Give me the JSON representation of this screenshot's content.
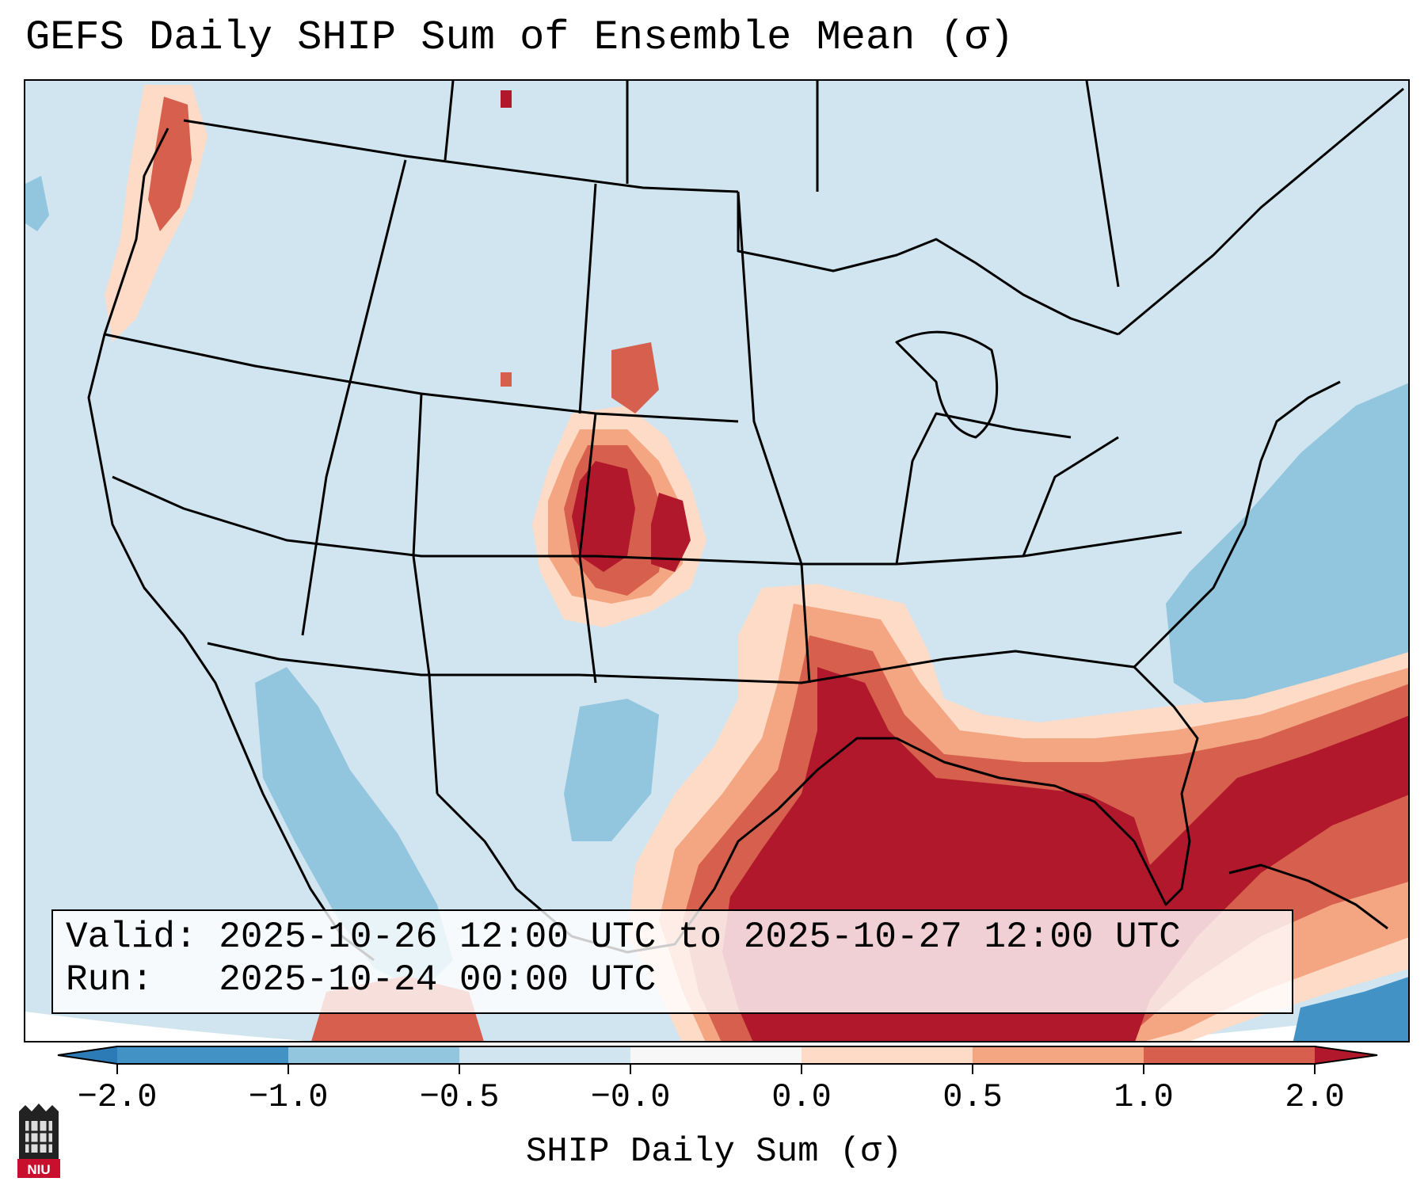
{
  "title": "GEFS Daily SHIP Sum of Ensemble Mean (σ)",
  "info": {
    "valid_label": "Valid:",
    "valid_value": "2025-10-26 12:00 UTC to 2025-10-27 12:00 UTC",
    "run_label": "Run:",
    "run_value": "2025-10-24 00:00 UTC"
  },
  "colorbar": {
    "label": "SHIP Daily Sum (σ)",
    "ticks": [
      "−2.0",
      "−1.0",
      "−0.5",
      "−0.0",
      "0.0",
      "0.5",
      "1.0",
      "2.0"
    ],
    "colors": [
      "#2c7bb6",
      "#4292c6",
      "#92c5de",
      "#d1e5f0",
      "#f7f7f7",
      "#fddbc7",
      "#f4a582",
      "#d6604d",
      "#b2182b"
    ]
  },
  "logo": {
    "text": "NIU"
  }
}
